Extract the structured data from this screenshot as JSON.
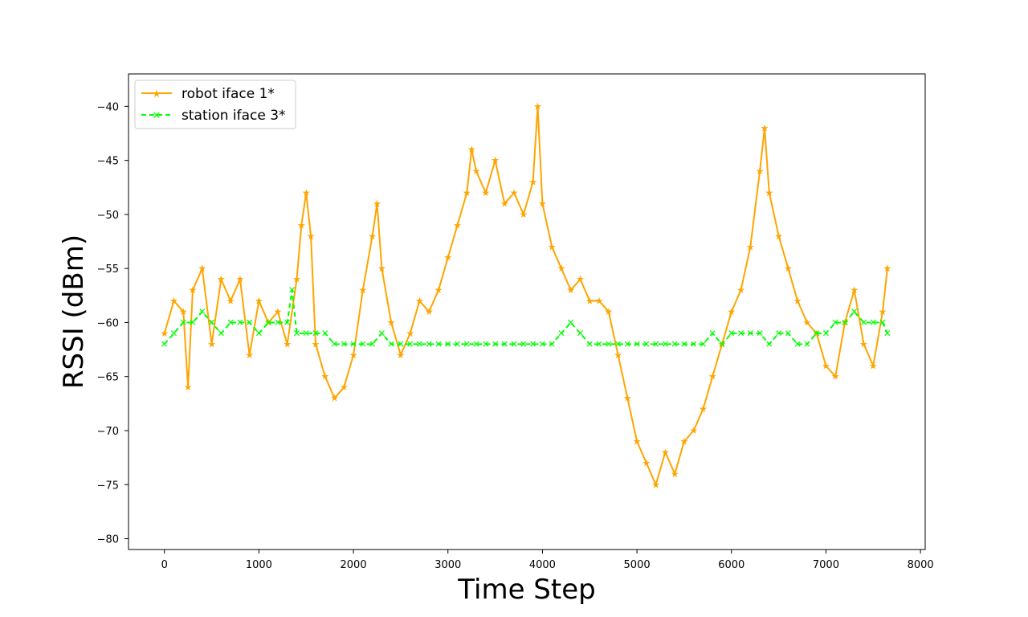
{
  "chart_data": {
    "type": "line",
    "title": "",
    "xlabel": "Time Step",
    "ylabel": "RSSI (dBm)",
    "xlim": [
      -380,
      8050
    ],
    "ylim": [
      -81,
      -37
    ],
    "x_ticks": [
      0,
      1000,
      2000,
      3000,
      4000,
      5000,
      6000,
      7000,
      8000
    ],
    "y_ticks": [
      -80,
      -75,
      -70,
      -65,
      -60,
      -55,
      -50,
      -45,
      -40
    ],
    "grid": false,
    "legend_position": "upper-left",
    "series": [
      {
        "name": "robot iface 1*",
        "color": "#ffa500",
        "line_style": "solid",
        "marker": "star",
        "x": [
          0,
          100,
          200,
          250,
          300,
          400,
          500,
          600,
          700,
          800,
          900,
          1000,
          1100,
          1200,
          1300,
          1400,
          1450,
          1500,
          1550,
          1600,
          1700,
          1800,
          1900,
          2000,
          2100,
          2200,
          2250,
          2300,
          2400,
          2500,
          2600,
          2700,
          2800,
          2900,
          3000,
          3100,
          3200,
          3250,
          3300,
          3400,
          3500,
          3600,
          3700,
          3800,
          3900,
          3950,
          4000,
          4100,
          4200,
          4300,
          4400,
          4500,
          4600,
          4700,
          4800,
          4900,
          5000,
          5100,
          5200,
          5300,
          5400,
          5500,
          5600,
          5700,
          5800,
          5900,
          6000,
          6100,
          6200,
          6300,
          6350,
          6400,
          6500,
          6600,
          6700,
          6800,
          6900,
          7000,
          7100,
          7200,
          7300,
          7400,
          7500,
          7600,
          7650
        ],
        "y": [
          -61,
          -58,
          -59,
          -66,
          -57,
          -55,
          -62,
          -56,
          -58,
          -56,
          -63,
          -58,
          -60,
          -59,
          -62,
          -56,
          -51,
          -48,
          -52,
          -62,
          -65,
          -67,
          -66,
          -63,
          -57,
          -52,
          -49,
          -55,
          -60,
          -63,
          -61,
          -58,
          -59,
          -57,
          -54,
          -51,
          -48,
          -44,
          -46,
          -48,
          -45,
          -49,
          -48,
          -50,
          -47,
          -40,
          -49,
          -53,
          -55,
          -57,
          -56,
          -58,
          -58,
          -59,
          -63,
          -67,
          -71,
          -73,
          -75,
          -72,
          -74,
          -71,
          -70,
          -68,
          -65,
          -62,
          -59,
          -57,
          -53,
          -46,
          -42,
          -48,
          -52,
          -55,
          -58,
          -60,
          -61,
          -64,
          -65,
          -60,
          -57,
          -62,
          -64,
          -59,
          -55
        ],
        "marker_indices": "all"
      },
      {
        "name": "station iface 3*",
        "color": "#00ff00",
        "line_style": "dashed",
        "marker": "x",
        "x": [
          0,
          100,
          200,
          300,
          400,
          500,
          600,
          700,
          800,
          900,
          1000,
          1100,
          1200,
          1300,
          1350,
          1400,
          1500,
          1600,
          1700,
          1800,
          1900,
          2000,
          2100,
          2200,
          2300,
          2400,
          2500,
          2600,
          2700,
          2800,
          2900,
          3000,
          3100,
          3200,
          3300,
          3400,
          3500,
          3600,
          3700,
          3800,
          3900,
          4000,
          4100,
          4200,
          4300,
          4400,
          4500,
          4600,
          4700,
          4800,
          4900,
          5000,
          5100,
          5200,
          5300,
          5400,
          5500,
          5600,
          5700,
          5800,
          5900,
          6000,
          6100,
          6200,
          6300,
          6400,
          6500,
          6600,
          6700,
          6800,
          6900,
          7000,
          7100,
          7200,
          7300,
          7400,
          7500,
          7600,
          7650
        ],
        "y": [
          -62,
          -61,
          -60,
          -60,
          -59,
          -60,
          -61,
          -60,
          -60,
          -60,
          -61,
          -60,
          -60,
          -60,
          -57,
          -61,
          -61,
          -61,
          -61,
          -62,
          -62,
          -62,
          -62,
          -62,
          -61,
          -62,
          -62,
          -62,
          -62,
          -62,
          -62,
          -62,
          -62,
          -62,
          -62,
          -62,
          -62,
          -62,
          -62,
          -62,
          -62,
          -62,
          -62,
          -61,
          -60,
          -61,
          -62,
          -62,
          -62,
          -62,
          -62,
          -62,
          -62,
          -62,
          -62,
          -62,
          -62,
          -62,
          -62,
          -61,
          -62,
          -61,
          -61,
          -61,
          -61,
          -62,
          -61,
          -61,
          -62,
          -62,
          -61,
          -61,
          -60,
          -60,
          -59,
          -60,
          -60,
          -60,
          -61
        ],
        "marker_indices": "all"
      }
    ]
  }
}
